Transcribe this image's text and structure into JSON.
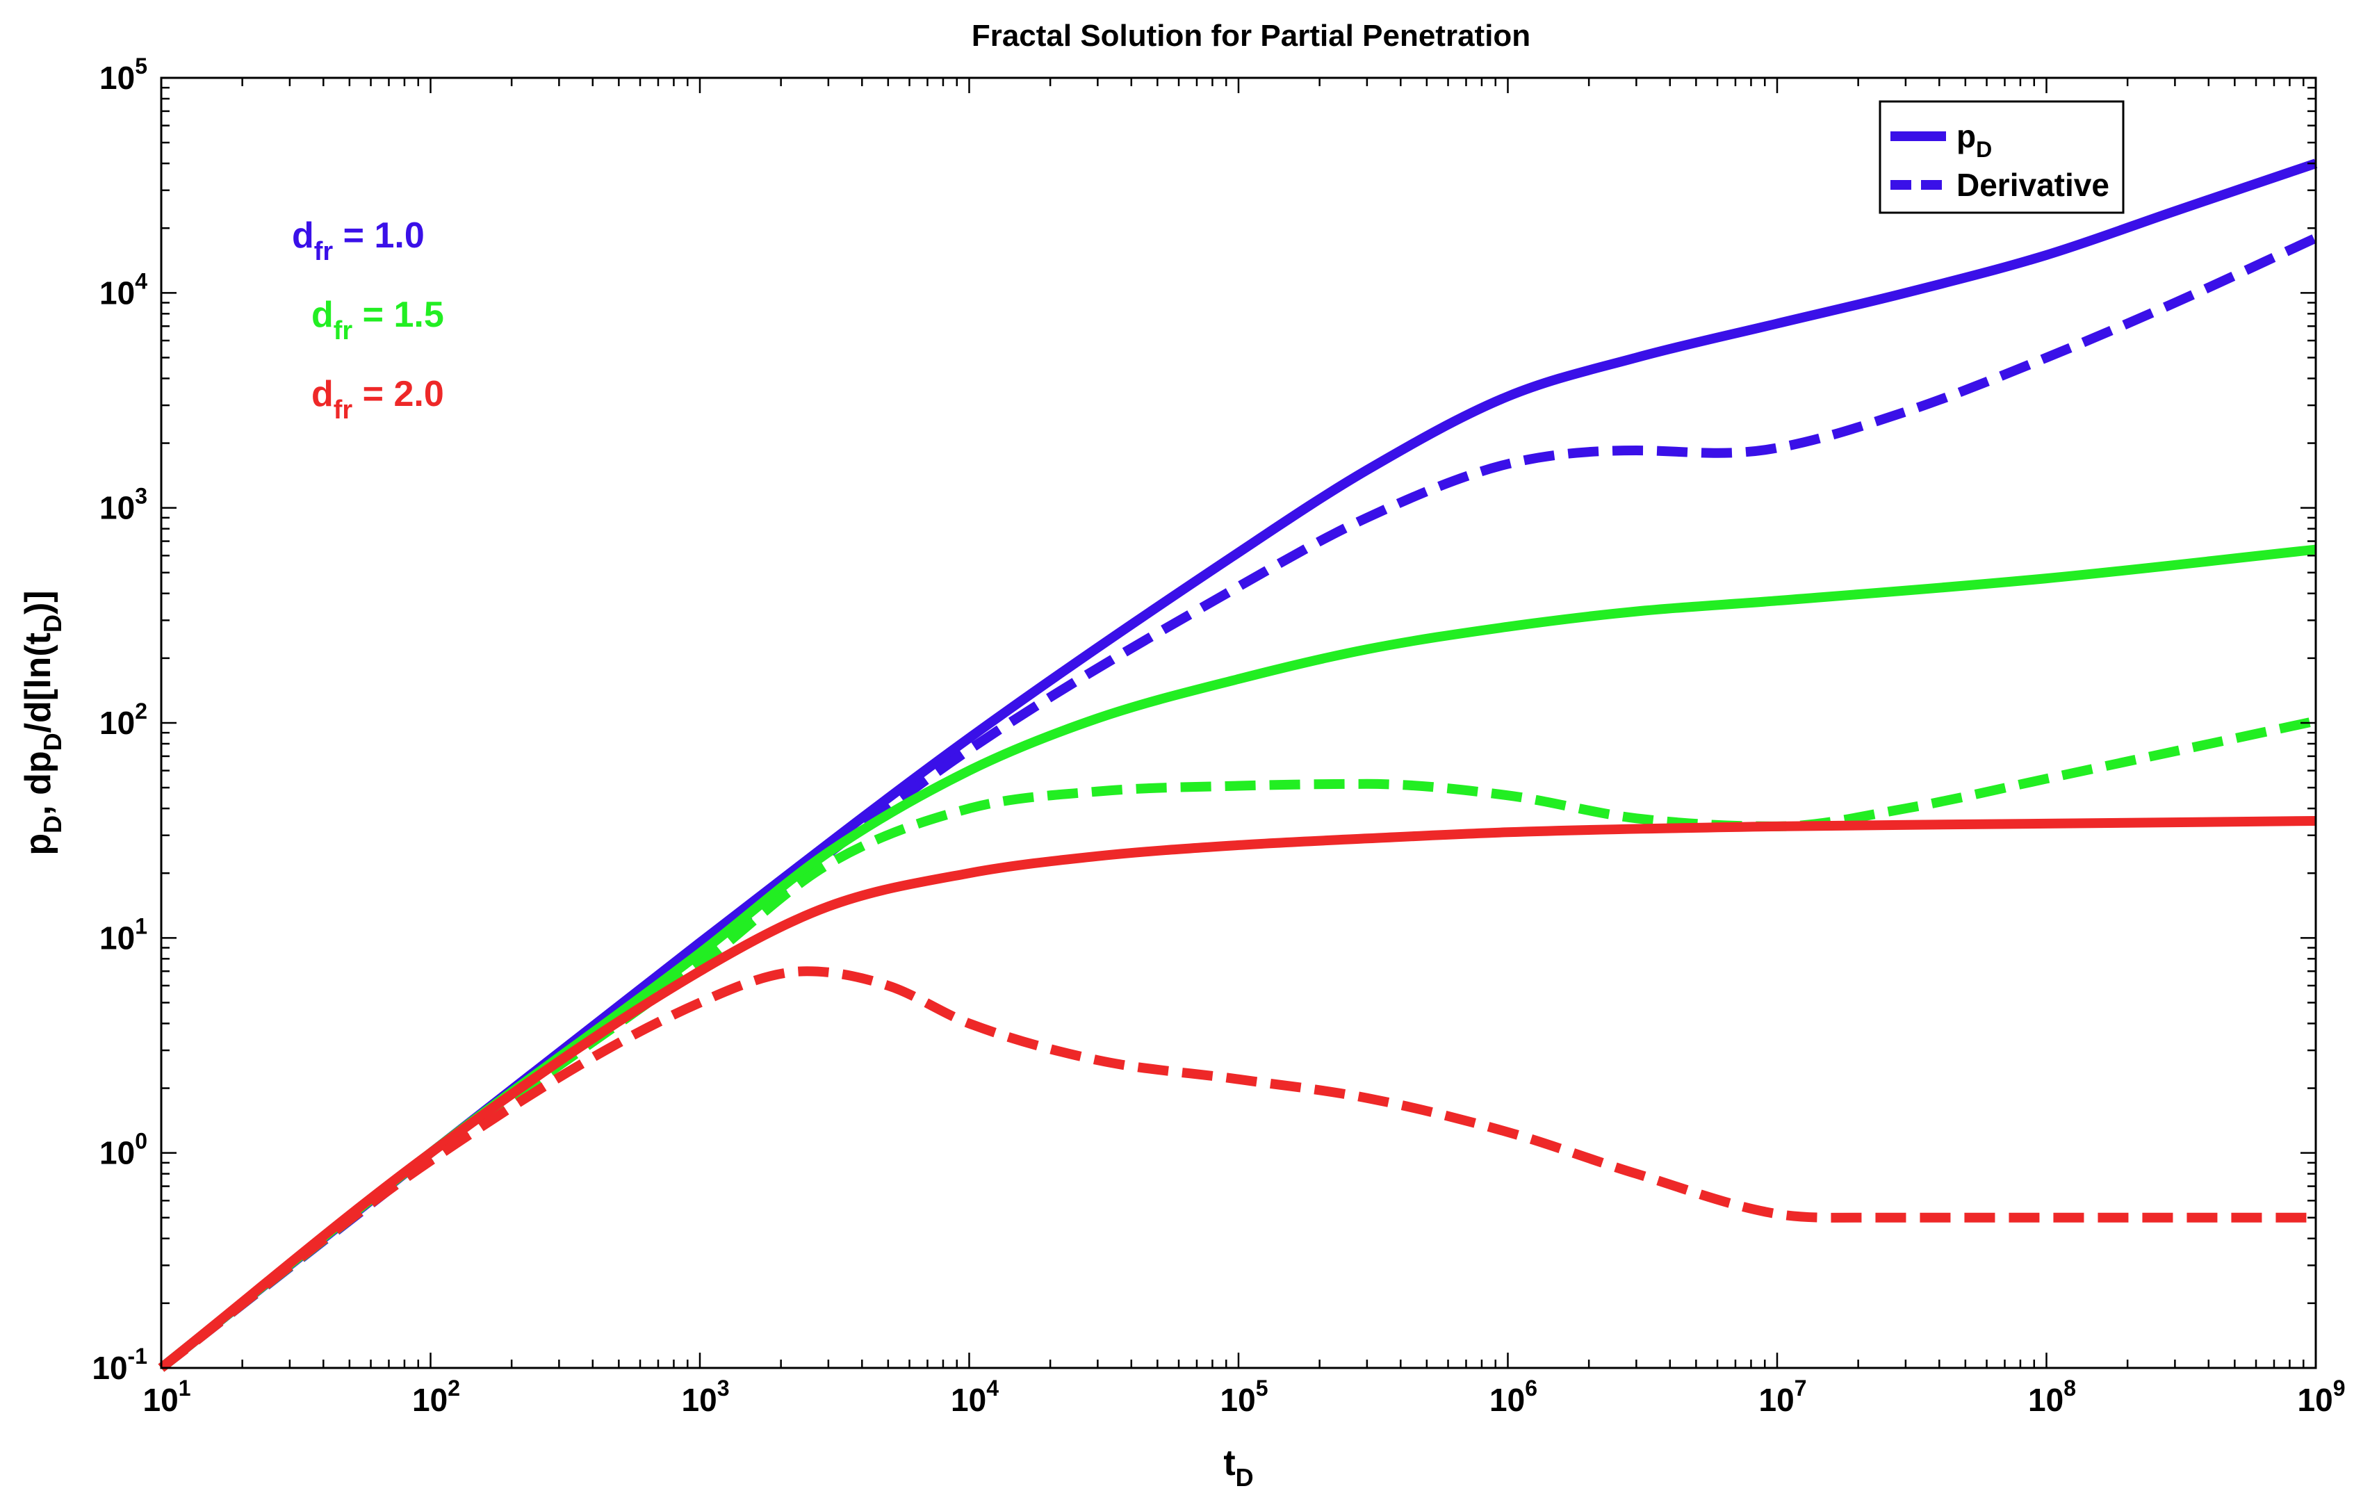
{
  "chart_data": {
    "type": "line",
    "title": "Fractal Solution for Partial Penetration",
    "xlabel": {
      "main": "t",
      "sub": "D"
    },
    "ylabel": [
      {
        "text": "p",
        "sub": false
      },
      {
        "text": "D",
        "sub": true
      },
      {
        "text": ", dp",
        "sub": false
      },
      {
        "text": "D",
        "sub": true
      },
      {
        "text": "/d[ln(t",
        "sub": false
      },
      {
        "text": "D",
        "sub": true
      },
      {
        "text": ")]",
        "sub": false
      }
    ],
    "x_scale": "log",
    "y_scale": "log",
    "xlim": [
      10,
      1000000000
    ],
    "ylim": [
      0.1,
      100000
    ],
    "x_ticks": [
      {
        "base": "10",
        "exp": "1",
        "value": 10
      },
      {
        "base": "10",
        "exp": "2",
        "value": 100
      },
      {
        "base": "10",
        "exp": "3",
        "value": 1000
      },
      {
        "base": "10",
        "exp": "4",
        "value": 10000
      },
      {
        "base": "10",
        "exp": "5",
        "value": 100000
      },
      {
        "base": "10",
        "exp": "6",
        "value": 1000000
      },
      {
        "base": "10",
        "exp": "7",
        "value": 10000000
      },
      {
        "base": "10",
        "exp": "8",
        "value": 100000000
      },
      {
        "base": "10",
        "exp": "9",
        "value": 1000000000
      }
    ],
    "y_ticks": [
      {
        "base": "10",
        "exp": "-1",
        "value": 0.1
      },
      {
        "base": "10",
        "exp": "0",
        "value": 1
      },
      {
        "base": "10",
        "exp": "1",
        "value": 10
      },
      {
        "base": "10",
        "exp": "2",
        "value": 100
      },
      {
        "base": "10",
        "exp": "3",
        "value": 1000
      },
      {
        "base": "10",
        "exp": "4",
        "value": 10000
      },
      {
        "base": "10",
        "exp": "5",
        "value": 100000
      }
    ],
    "grid": false,
    "legend": {
      "position": "top-right",
      "entries": [
        {
          "main": "p",
          "sub": "D",
          "style": "solid",
          "color": "#3a10e8"
        },
        {
          "main": "Derivative",
          "sub": "",
          "style": "dashed",
          "color": "#3a10e8"
        }
      ]
    },
    "annotations": [
      {
        "main": "d",
        "sub": "fr",
        "rest": " = 1.0",
        "color": "#3a10e8"
      },
      {
        "main": "d",
        "sub": "fr",
        "rest": " = 1.5",
        "color": "#22ee22"
      },
      {
        "main": "d",
        "sub": "fr",
        "rest": " = 2.0",
        "color": "#ee2828"
      }
    ],
    "series": [
      {
        "group": "d_fr = 1.0",
        "kind": "p_D",
        "color": "#3a10e8",
        "style": "solid",
        "x": [
          10,
          100,
          1000,
          10000,
          100000,
          300000,
          1000000,
          3000000,
          10000000,
          30000000,
          100000000,
          300000000,
          1000000000
        ],
        "y": [
          0.1,
          1,
          9.5,
          85,
          620,
          1500,
          3300,
          5000,
          7200,
          10000,
          15000,
          24000,
          40000
        ]
      },
      {
        "group": "d_fr = 1.0",
        "kind": "Derivative",
        "color": "#3a10e8",
        "style": "dashed",
        "x": [
          10,
          100,
          1000,
          10000,
          100000,
          300000,
          1000000,
          3000000,
          6000000,
          10000000,
          30000000,
          100000000,
          300000000,
          1000000000
        ],
        "y": [
          0.1,
          0.95,
          8.5,
          75,
          430,
          900,
          1600,
          1850,
          1800,
          1900,
          2800,
          5000,
          9000,
          18000
        ]
      },
      {
        "group": "d_fr = 1.5",
        "kind": "p_D",
        "color": "#22ee22",
        "style": "solid",
        "x": [
          10,
          100,
          1000,
          3000,
          10000,
          30000,
          100000,
          300000,
          1000000,
          3000000,
          10000000,
          100000000,
          1000000000
        ],
        "y": [
          0.1,
          1,
          8.5,
          25,
          60,
          105,
          160,
          220,
          280,
          330,
          370,
          470,
          640
        ]
      },
      {
        "group": "d_fr = 1.5",
        "kind": "Derivative",
        "color": "#22ee22",
        "style": "dashed",
        "x": [
          10,
          100,
          1000,
          3000,
          10000,
          30000,
          100000,
          300000,
          1000000,
          3000000,
          10000000,
          30000000,
          100000000,
          1000000000
        ],
        "y": [
          0.1,
          0.95,
          7.5,
          22,
          40,
          48,
          51,
          52,
          46,
          36,
          33,
          40,
          55,
          102
        ]
      },
      {
        "group": "d_fr = 2.0",
        "kind": "p_D",
        "color": "#ee2828",
        "style": "solid",
        "x": [
          10,
          100,
          1000,
          3000,
          10000,
          30000,
          100000,
          300000,
          1000000,
          10000000,
          100000000,
          1000000000
        ],
        "y": [
          0.1,
          1,
          7,
          14,
          20,
          24,
          27,
          29,
          31,
          33,
          34,
          35
        ]
      },
      {
        "group": "d_fr = 2.0",
        "kind": "Derivative",
        "color": "#ee2828",
        "style": "dashed",
        "x": [
          10,
          100,
          1000,
          2500,
          5000,
          10000,
          30000,
          100000,
          300000,
          1000000,
          3000000,
          10000000,
          20000000,
          100000000,
          1000000000
        ],
        "y": [
          0.1,
          0.92,
          5,
          7,
          6,
          4,
          2.7,
          2.2,
          1.8,
          1.25,
          0.8,
          0.52,
          0.5,
          0.5,
          0.5
        ]
      }
    ]
  }
}
